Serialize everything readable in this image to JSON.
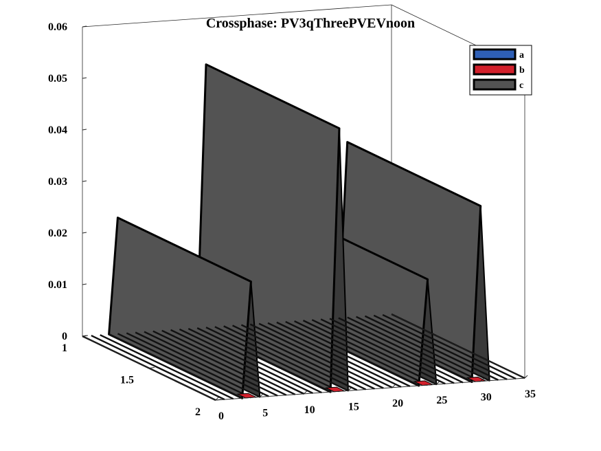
{
  "chart_data": {
    "type": "bar3d",
    "title": "Crossphase: PV3qThreePVEVnoon",
    "xlabel": "",
    "ylabel": "",
    "zlabel": "",
    "xlim": [
      0,
      35
    ],
    "ylim": [
      1,
      2
    ],
    "zlim": [
      0,
      0.06
    ],
    "x_ticks": [
      "0",
      "5",
      "10",
      "15",
      "20",
      "25",
      "30",
      "35"
    ],
    "y_ticks": [
      "1",
      "1.5",
      "2"
    ],
    "z_ticks": [
      "0",
      "0.01",
      "0.02",
      "0.03",
      "0.04",
      "0.05",
      "0.06"
    ],
    "legend_position": "top-right",
    "series": [
      {
        "name": "a",
        "color": "#2e5fb6",
        "values": [
          0,
          0,
          0,
          0,
          0,
          0,
          0,
          0,
          0,
          0,
          0,
          0,
          0,
          0,
          0,
          0,
          0,
          0,
          0,
          0,
          0,
          0,
          0,
          0,
          0,
          0,
          0,
          0,
          0,
          0,
          0,
          0,
          0,
          0,
          0
        ]
      },
      {
        "name": "b",
        "color": "#d2202c",
        "values": [
          0,
          0,
          0,
          0,
          0.0006,
          0,
          0,
          0,
          0,
          0,
          0,
          0,
          0,
          0,
          0.0006,
          0,
          0,
          0,
          0,
          0,
          0,
          0,
          0,
          0,
          0.0006,
          0,
          0,
          0,
          0,
          0,
          0.0006,
          0,
          0,
          0,
          0
        ]
      },
      {
        "name": "c",
        "color": "#535353",
        "values": [
          0,
          0,
          0,
          0,
          0.0225,
          0,
          0,
          0,
          0,
          0,
          0,
          0,
          0,
          0,
          0.051,
          0,
          0,
          0,
          0,
          0,
          0,
          0,
          0,
          0,
          0.0205,
          0,
          0,
          0,
          0,
          0,
          0.034,
          0,
          0,
          0,
          0
        ]
      }
    ]
  }
}
